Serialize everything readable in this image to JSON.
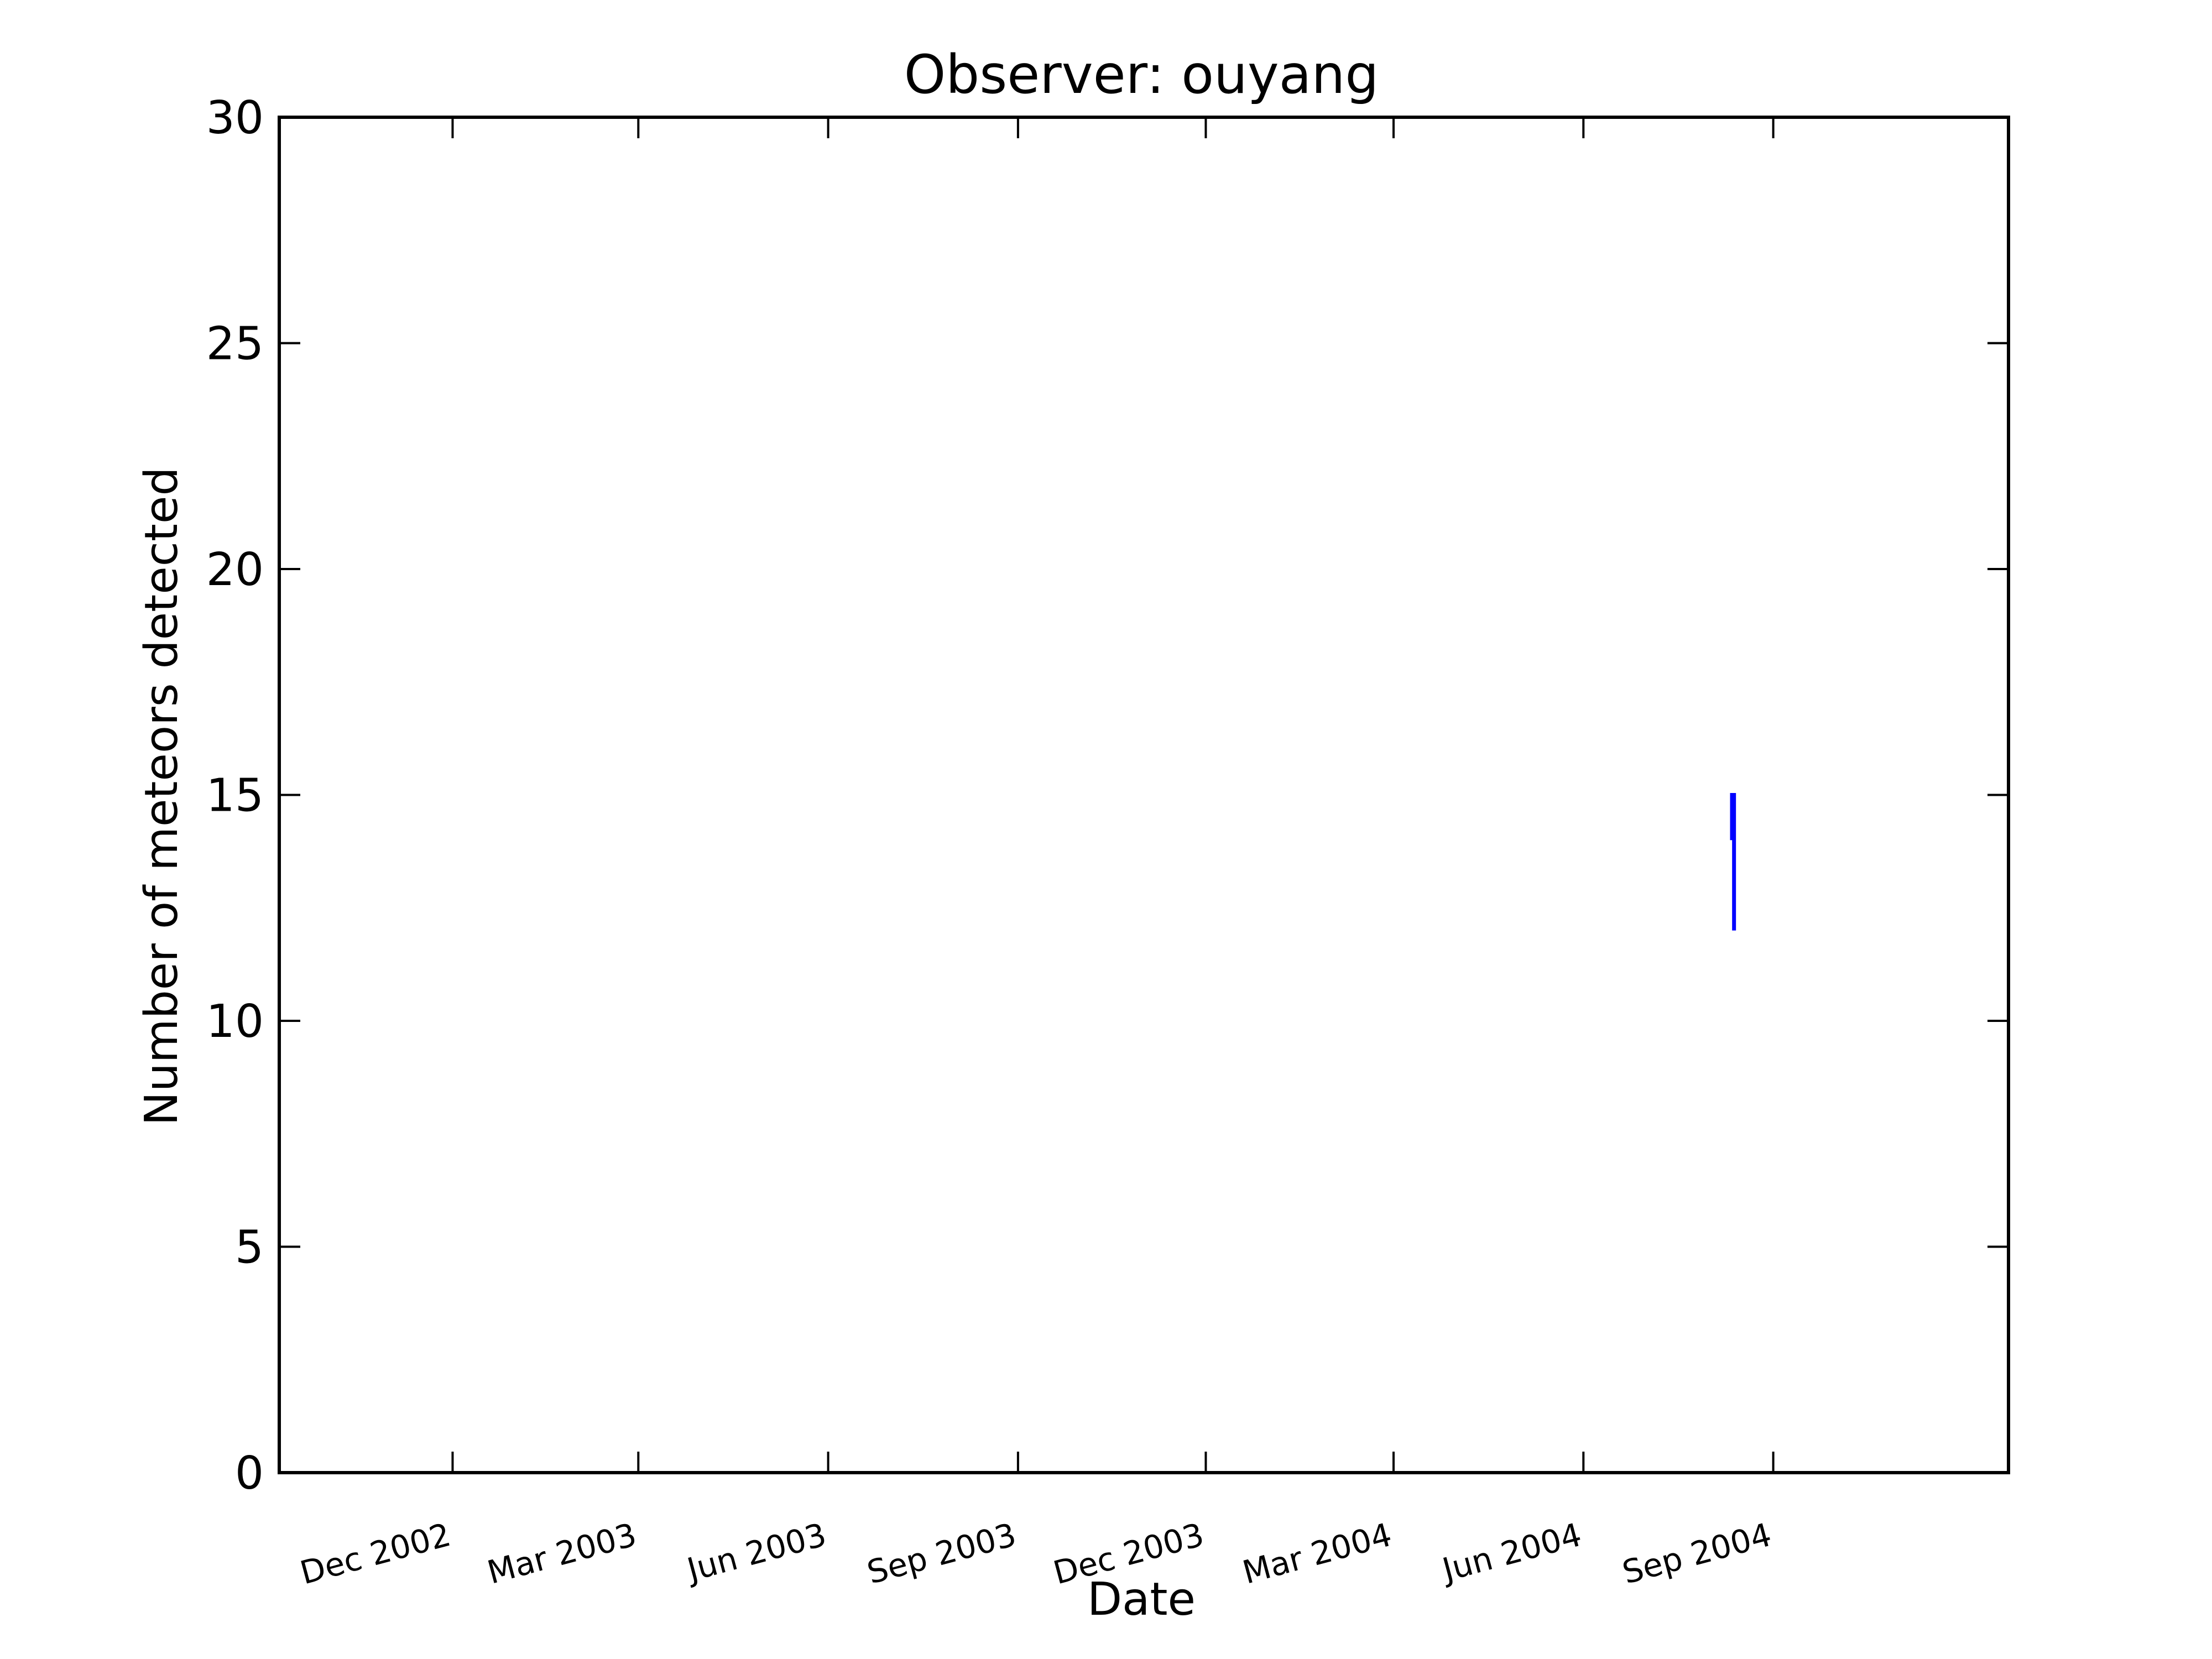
{
  "chart_data": {
    "type": "line",
    "title": "Observer: ouyang",
    "xlabel": "Date",
    "ylabel": "Number of meteors detected",
    "ylim": [
      0,
      30
    ],
    "xlim": [
      "2002-09-08",
      "2004-12-24"
    ],
    "yticks": [
      0,
      5,
      10,
      15,
      20,
      25,
      30
    ],
    "xticks": [
      {
        "date": "2002-12-01",
        "label": "Dec 2002"
      },
      {
        "date": "2003-03-01",
        "label": "Mar 2003"
      },
      {
        "date": "2003-06-01",
        "label": "Jun 2003"
      },
      {
        "date": "2003-09-01",
        "label": "Sep 2003"
      },
      {
        "date": "2003-12-01",
        "label": "Dec 2003"
      },
      {
        "date": "2004-03-01",
        "label": "Mar 2004"
      },
      {
        "date": "2004-06-01",
        "label": "Jun 2004"
      },
      {
        "date": "2004-09-01",
        "label": "Sep 2004"
      }
    ],
    "grid": false,
    "series": [
      {
        "color": "#0000ff",
        "points": [
          {
            "x": "2004-08-12",
            "y": 14
          },
          {
            "x": "2004-08-12",
            "y": 15
          },
          {
            "x": "2004-08-13",
            "y": 15
          },
          {
            "x": "2004-08-13",
            "y": 12
          }
        ]
      }
    ]
  }
}
